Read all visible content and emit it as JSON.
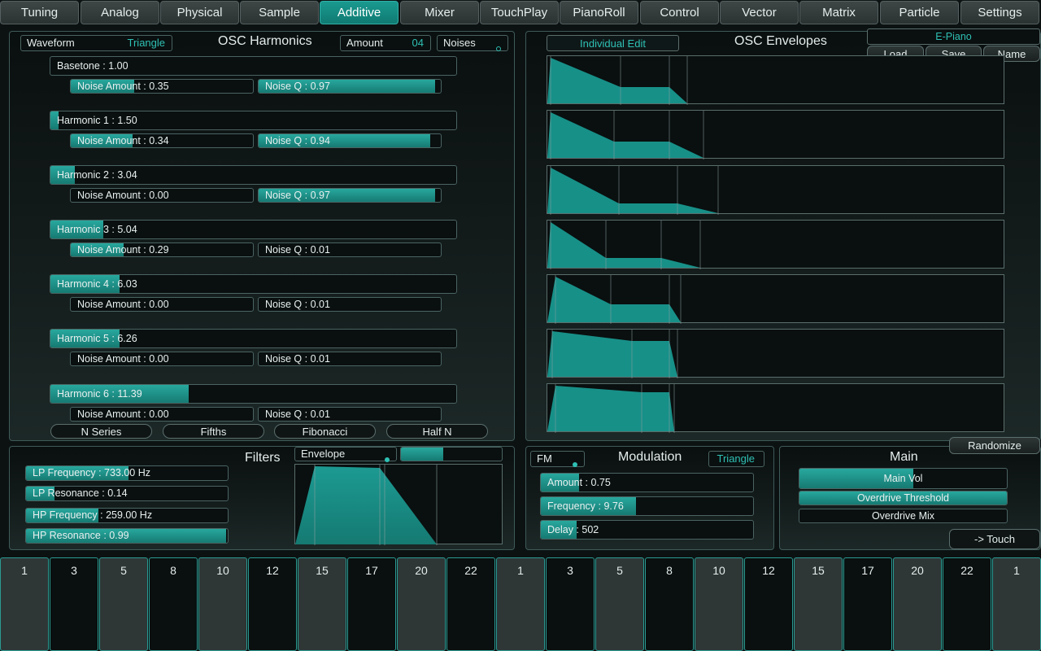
{
  "tabs": [
    "Tuning",
    "Analog",
    "Physical",
    "Sample",
    "Additive",
    "Mixer",
    "TouchPlay",
    "PianoRoll",
    "Control",
    "Vector",
    "Matrix",
    "Particle",
    "Settings"
  ],
  "active_tab": "Additive",
  "harmonics": {
    "title": "OSC Harmonics",
    "waveform_label": "Waveform",
    "waveform_value": "Triangle",
    "amount_label": "Amount",
    "amount_value": "04",
    "noises_label": "Noises",
    "basetone": "Basetone : 1.00",
    "rows": [
      {
        "label": "Harmonic 1 : 1.50",
        "level": 0.02,
        "noise_amount": "Noise Amount : 0.34",
        "noise_amount_level": 0.34,
        "noise_q": "Noise Q : 0.94",
        "noise_q_level": 0.94
      },
      {
        "label": "Harmonic 2 : 3.04",
        "level": 0.06,
        "noise_amount": "Noise Amount : 0.00",
        "noise_amount_level": 0.0,
        "noise_q": "Noise Q : 0.97",
        "noise_q_level": 0.97
      },
      {
        "label": "Harmonic 3 : 5.04",
        "level": 0.13,
        "noise_amount": "Noise Amount : 0.29",
        "noise_amount_level": 0.29,
        "noise_q": "Noise Q : 0.01",
        "noise_q_level": 0.0
      },
      {
        "label": "Harmonic 4 : 6.03",
        "level": 0.17,
        "noise_amount": "Noise Amount : 0.00",
        "noise_amount_level": 0.0,
        "noise_q": "Noise Q : 0.01",
        "noise_q_level": 0.0
      },
      {
        "label": "Harmonic 5 : 6.26",
        "level": 0.17,
        "noise_amount": "Noise Amount : 0.00",
        "noise_amount_level": 0.0,
        "noise_q": "Noise Q : 0.01",
        "noise_q_level": 0.0
      },
      {
        "label": "Harmonic 6 : 11.39",
        "level": 0.34,
        "noise_amount": "Noise Amount : 0.00",
        "noise_amount_level": 0.0,
        "noise_q": "Noise Q : 0.01",
        "noise_q_level": 0.0
      }
    ],
    "base_noise_amount": "Noise Amount : 0.35",
    "base_noise_amount_level": 0.35,
    "base_noise_q": "Noise Q : 0.97",
    "base_noise_q_level": 0.97,
    "series_buttons": [
      "N Series",
      "Fifths",
      "Fibonacci",
      "Half N"
    ]
  },
  "envelopes": {
    "title": "OSC Envelopes",
    "individual_edit": "Individual Edit",
    "preset_name": "E-Piano",
    "load": "Load",
    "save": "Save",
    "name": "Name",
    "count": 7
  },
  "filters": {
    "title": "Filters",
    "envelope_label": "Envelope",
    "envelope_level": 0.42,
    "rows": [
      {
        "label": "LP Frequency : 733.00 Hz",
        "level": 0.51
      },
      {
        "label": "LP Resonance : 0.14",
        "level": 0.14
      },
      {
        "label": "HP Frequency : 259.00 Hz",
        "level": 0.36
      },
      {
        "label": "HP Resonance : 0.99",
        "level": 0.99
      }
    ]
  },
  "modulation": {
    "title": "Modulation",
    "fm_label": "FM",
    "waveform_value": "Triangle",
    "rows": [
      {
        "label": "Amount : 0.75",
        "level": 0.18
      },
      {
        "label": "Frequency : 9.76",
        "level": 0.45
      },
      {
        "label": "Delay : 502",
        "level": 0.17
      }
    ]
  },
  "main": {
    "title": "Main",
    "randomize": "Randomize",
    "rows": [
      {
        "label": "Main Vol",
        "level": 0.55
      },
      {
        "label": "Overdrive Threshold",
        "level": 1.0
      },
      {
        "label": "Overdrive Mix",
        "level": 0.0
      }
    ],
    "touch": "-> Touch"
  },
  "keyboard": [
    "1",
    "3",
    "5",
    "8",
    "10",
    "12",
    "15",
    "17",
    "20",
    "22",
    "1",
    "3",
    "5",
    "8",
    "10",
    "12",
    "15",
    "17",
    "20",
    "22",
    "1"
  ],
  "colors": {
    "accent": "#20a098",
    "accent_text": "#2ec0b4",
    "panel_border": "#3e5a58"
  }
}
